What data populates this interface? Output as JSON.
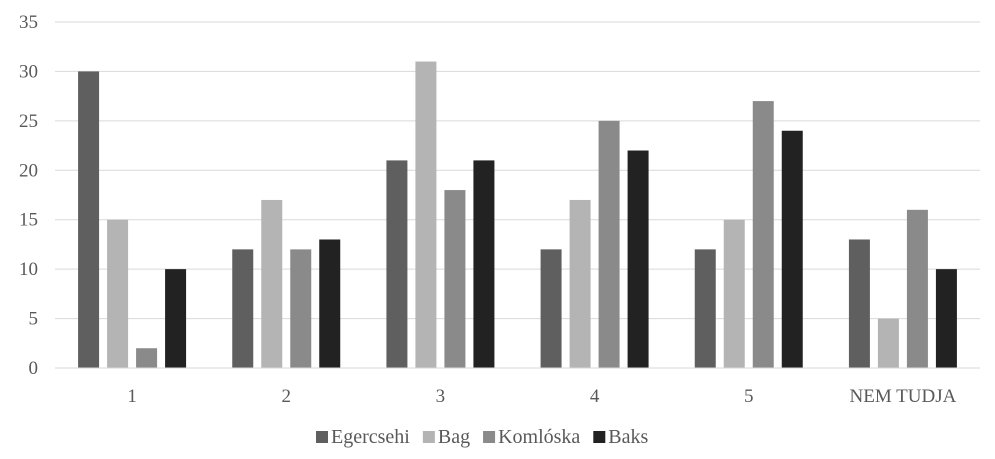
{
  "chart_data": {
    "type": "bar",
    "categories": [
      "1",
      "2",
      "3",
      "4",
      "5",
      "NEM TUDJA"
    ],
    "series": [
      {
        "name": "Egercsehi",
        "values": [
          30,
          12,
          21,
          12,
          12,
          13
        ],
        "color": "#5f5f5f"
      },
      {
        "name": "Bag",
        "values": [
          15,
          17,
          31,
          17,
          15,
          5
        ],
        "color": "#b4b4b4"
      },
      {
        "name": "Komlóska",
        "values": [
          2,
          12,
          18,
          25,
          27,
          16
        ],
        "color": "#8a8a8a"
      },
      {
        "name": "Baks",
        "values": [
          10,
          13,
          21,
          22,
          24,
          10
        ],
        "color": "#222222"
      }
    ],
    "ylim": [
      0,
      35
    ],
    "yticks": [
      0,
      5,
      10,
      15,
      20,
      25,
      30,
      35
    ],
    "grid": true,
    "legend": "bottom"
  }
}
